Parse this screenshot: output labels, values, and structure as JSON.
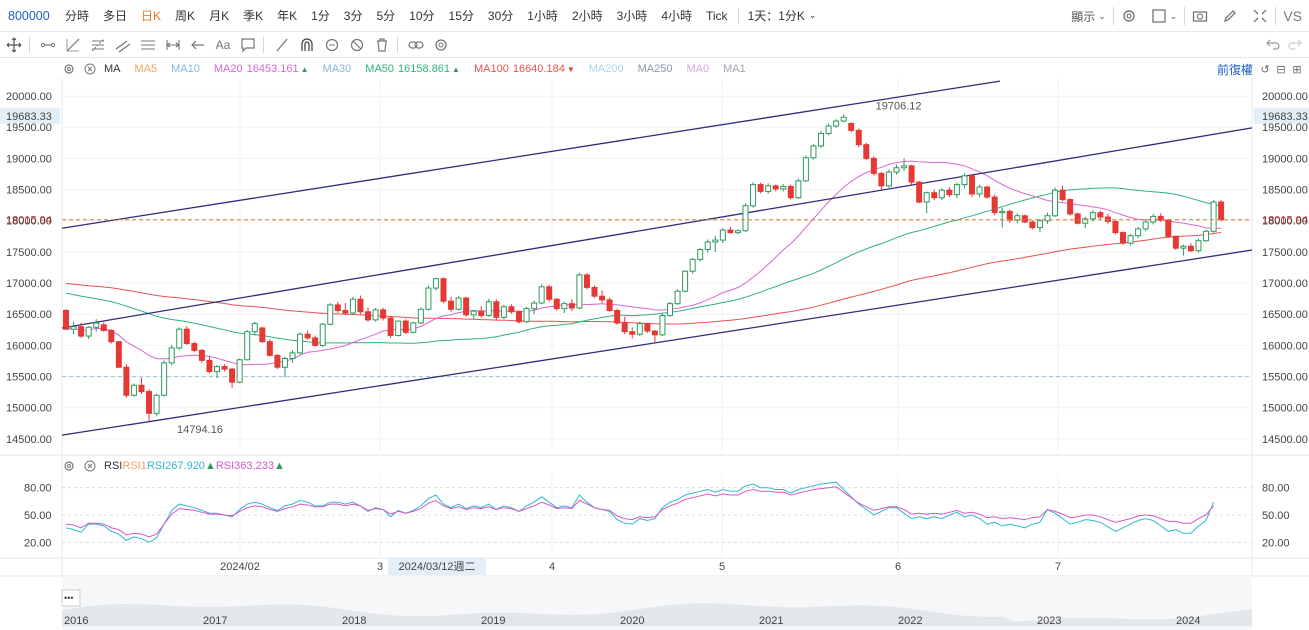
{
  "topbar": {
    "symbol": "800000",
    "timeframes": [
      "分時",
      "多日",
      "日K",
      "周K",
      "月K",
      "季K",
      "年K",
      "1分",
      "3分",
      "5分",
      "10分",
      "15分",
      "30分",
      "1小時",
      "2小時",
      "3小時",
      "4小時",
      "Tick"
    ],
    "active": "日K",
    "custom": "1天：1分K",
    "display_label": "顯示"
  },
  "legend": {
    "main_label": "MA",
    "ma5": "MA5",
    "ma10": "MA10",
    "ma20": "MA20",
    "ma20_value": "16453.161",
    "ma30": "MA30",
    "ma50": "MA50",
    "ma50_value": "16158.861",
    "ma100": "MA100",
    "ma100_value": "16640.184",
    "ma200": "MA200",
    "ma250": "MA250",
    "ma0": "MA0",
    "ma1": "MA1",
    "adjust_label": "前復權"
  },
  "rsi_legend": {
    "label": "RSI",
    "rsi1": "RSI1",
    "rsi2": "RSI2",
    "rsi2_value": "67.920",
    "rsi3": "RSI3",
    "rsi3_value": "63.233"
  },
  "colors": {
    "up": "#2e9a5e",
    "down": "#e53935",
    "ma5": "#f0a35e",
    "ma10": "#7fb8e0",
    "ma20": "#d966d0",
    "ma30": "#88b8d8",
    "ma50": "#2eb37a",
    "ma100": "#e8524f",
    "ma200": "#a8d8ec",
    "ma250": "#8a96a8",
    "ma0": "#d8a8e0",
    "ma1": "#a0a8b0",
    "channel": "#2c2c7a",
    "last_price_line": "#e8762d",
    "rsi2": "#31b8d0",
    "rsi3": "#d957c8"
  },
  "chart_data": {
    "type": "candlestick",
    "y_ticks": [
      "20000.00",
      "19500.00",
      "19000.00",
      "18500.00",
      "18000.00",
      "17500.00",
      "17000.00",
      "16500.00",
      "16000.00",
      "15500.00",
      "15000.00",
      "14500.00"
    ],
    "ylim": [
      14290,
      20290
    ],
    "current_price": "18015.94",
    "crosshair_price": "19683.33",
    "reference_line": 15500,
    "annotations": {
      "high": "19706.12",
      "low": "14794.16"
    },
    "x_labels": [
      "2024/02",
      "3",
      "4",
      "5",
      "6",
      "7"
    ],
    "crosshair_date": "2024/03/12週二",
    "candles": [
      [
        16560,
        16580,
        16250,
        16260
      ],
      [
        16260,
        16380,
        16180,
        16300
      ],
      [
        16300,
        16360,
        16120,
        16150
      ],
      [
        16150,
        16310,
        16100,
        16290
      ],
      [
        16290,
        16420,
        16220,
        16360
      ],
      [
        16330,
        16370,
        16220,
        16240
      ],
      [
        16240,
        16260,
        16030,
        16060
      ],
      [
        16060,
        16070,
        15640,
        15650
      ],
      [
        15650,
        15700,
        15160,
        15200
      ],
      [
        15200,
        15390,
        15180,
        15360
      ],
      [
        15360,
        15480,
        15220,
        15260
      ],
      [
        15260,
        15300,
        14790,
        14910
      ],
      [
        14910,
        15230,
        14860,
        15200
      ],
      [
        15200,
        15760,
        15180,
        15720
      ],
      [
        15720,
        16010,
        15680,
        15960
      ],
      [
        15960,
        16290,
        15930,
        16260
      ],
      [
        16260,
        16310,
        16010,
        16030
      ],
      [
        16030,
        16060,
        15890,
        15920
      ],
      [
        15920,
        15940,
        15720,
        15760
      ],
      [
        15760,
        15820,
        15550,
        15580
      ],
      [
        15580,
        15690,
        15480,
        15660
      ],
      [
        15660,
        15700,
        15580,
        15620
      ],
      [
        15620,
        15640,
        15320,
        15410
      ],
      [
        15410,
        15790,
        15390,
        15770
      ],
      [
        15770,
        16250,
        15760,
        16220
      ],
      [
        16220,
        16380,
        16160,
        16350
      ],
      [
        16280,
        16300,
        16040,
        16060
      ],
      [
        16060,
        16100,
        15820,
        15840
      ],
      [
        15840,
        15860,
        15620,
        15650
      ],
      [
        15650,
        15820,
        15490,
        15790
      ],
      [
        15790,
        15920,
        15720,
        15880
      ],
      [
        15880,
        16210,
        15860,
        16180
      ],
      [
        16180,
        16240,
        16090,
        16120
      ],
      [
        16120,
        16160,
        15980,
        16000
      ],
      [
        16000,
        16360,
        15980,
        16340
      ],
      [
        16340,
        16680,
        16320,
        16650
      ],
      [
        16650,
        16700,
        16520,
        16560
      ],
      [
        16560,
        16680,
        16490,
        16520
      ],
      [
        16520,
        16780,
        16500,
        16740
      ],
      [
        16740,
        16800,
        16500,
        16540
      ],
      [
        16540,
        16610,
        16380,
        16410
      ],
      [
        16410,
        16600,
        16380,
        16570
      ],
      [
        16570,
        16600,
        16400,
        16440
      ],
      [
        16440,
        16470,
        16120,
        16160
      ],
      [
        16160,
        16400,
        16140,
        16390
      ],
      [
        16390,
        16420,
        16180,
        16210
      ],
      [
        16210,
        16380,
        16190,
        16360
      ],
      [
        16360,
        16610,
        16340,
        16580
      ],
      [
        16580,
        16960,
        16560,
        16920
      ],
      [
        16920,
        17090,
        16880,
        17070
      ],
      [
        17070,
        17090,
        16680,
        16710
      ],
      [
        16710,
        16780,
        16540,
        16580
      ],
      [
        16580,
        16790,
        16560,
        16760
      ],
      [
        16760,
        16780,
        16460,
        16490
      ],
      [
        16490,
        16570,
        16420,
        16550
      ],
      [
        16550,
        16630,
        16440,
        16480
      ],
      [
        16480,
        16750,
        16460,
        16700
      ],
      [
        16700,
        16740,
        16400,
        16450
      ],
      [
        16450,
        16650,
        16420,
        16620
      ],
      [
        16620,
        16660,
        16510,
        16540
      ],
      [
        16540,
        16560,
        16350,
        16380
      ],
      [
        16380,
        16620,
        16360,
        16590
      ],
      [
        16590,
        16720,
        16500,
        16680
      ],
      [
        16680,
        16980,
        16660,
        16940
      ],
      [
        16940,
        16970,
        16700,
        16740
      ],
      [
        16740,
        16760,
        16560,
        16590
      ],
      [
        16590,
        16700,
        16520,
        16670
      ],
      [
        16670,
        16740,
        16550,
        16600
      ],
      [
        16600,
        17170,
        16580,
        17130
      ],
      [
        17130,
        17160,
        16900,
        16930
      ],
      [
        16930,
        16960,
        16760,
        16790
      ],
      [
        16790,
        16880,
        16680,
        16730
      ],
      [
        16730,
        16770,
        16540,
        16560
      ],
      [
        16560,
        16590,
        16330,
        16360
      ],
      [
        16360,
        16460,
        16180,
        16220
      ],
      [
        16220,
        16290,
        16110,
        16180
      ],
      [
        16180,
        16380,
        16150,
        16350
      ],
      [
        16350,
        16360,
        16200,
        16230
      ],
      [
        16230,
        16250,
        16050,
        16170
      ],
      [
        16170,
        16510,
        16150,
        16480
      ],
      [
        16480,
        16700,
        16460,
        16670
      ],
      [
        16670,
        16900,
        16650,
        16870
      ],
      [
        16870,
        17210,
        16850,
        17190
      ],
      [
        17190,
        17400,
        17150,
        17380
      ],
      [
        17380,
        17560,
        17350,
        17540
      ],
      [
        17540,
        17700,
        17490,
        17660
      ],
      [
        17660,
        17760,
        17500,
        17690
      ],
      [
        17690,
        17880,
        17640,
        17850
      ],
      [
        17850,
        17900,
        17790,
        17810
      ],
      [
        17810,
        17860,
        17780,
        17840
      ],
      [
        17840,
        18280,
        17820,
        18240
      ],
      [
        18240,
        18620,
        18210,
        18580
      ],
      [
        18580,
        18610,
        18440,
        18470
      ],
      [
        18470,
        18600,
        18430,
        18560
      ],
      [
        18560,
        18580,
        18470,
        18510
      ],
      [
        18510,
        18590,
        18470,
        18550
      ],
      [
        18550,
        18580,
        18340,
        18370
      ],
      [
        18370,
        18680,
        18350,
        18640
      ],
      [
        18640,
        19050,
        18620,
        19010
      ],
      [
        19010,
        19230,
        18980,
        19200
      ],
      [
        19200,
        19440,
        19170,
        19400
      ],
      [
        19400,
        19560,
        19370,
        19520
      ],
      [
        19520,
        19630,
        19490,
        19600
      ],
      [
        19600,
        19706,
        19580,
        19660
      ],
      [
        19560,
        19580,
        19420,
        19450
      ],
      [
        19450,
        19480,
        19180,
        19220
      ],
      [
        19220,
        19250,
        18970,
        19000
      ],
      [
        19000,
        19040,
        18720,
        18760
      ],
      [
        18760,
        18780,
        18500,
        18560
      ],
      [
        18560,
        18820,
        18530,
        18780
      ],
      [
        18780,
        18900,
        18740,
        18850
      ],
      [
        18850,
        19000,
        18800,
        18880
      ],
      [
        18880,
        18900,
        18580,
        18620
      ],
      [
        18620,
        18640,
        18280,
        18300
      ],
      [
        18300,
        18470,
        18120,
        18450
      ],
      [
        18450,
        18500,
        18330,
        18370
      ],
      [
        18370,
        18520,
        18330,
        18490
      ],
      [
        18490,
        18540,
        18380,
        18420
      ],
      [
        18420,
        18610,
        18360,
        18580
      ],
      [
        18580,
        18760,
        18520,
        18720
      ],
      [
        18720,
        18740,
        18380,
        18430
      ],
      [
        18430,
        18580,
        18380,
        18540
      ],
      [
        18540,
        18560,
        18350,
        18380
      ],
      [
        18380,
        18420,
        18090,
        18130
      ],
      [
        18130,
        18210,
        17890,
        18150
      ],
      [
        18150,
        18180,
        17960,
        18010
      ],
      [
        18010,
        18120,
        17960,
        18080
      ],
      [
        18080,
        18100,
        17960,
        17980
      ],
      [
        17980,
        18010,
        17860,
        17890
      ],
      [
        17890,
        18030,
        17820,
        18000
      ],
      [
        18000,
        18130,
        17950,
        18080
      ],
      [
        18080,
        18530,
        18060,
        18490
      ],
      [
        18490,
        18560,
        18310,
        18340
      ],
      [
        18340,
        18360,
        18080,
        18110
      ],
      [
        18110,
        18130,
        17940,
        17960
      ],
      [
        17960,
        18060,
        17880,
        18030
      ],
      [
        18030,
        18170,
        17990,
        18130
      ],
      [
        18130,
        18160,
        18020,
        18060
      ],
      [
        18060,
        18110,
        17950,
        17990
      ],
      [
        17990,
        18000,
        17780,
        17810
      ],
      [
        17810,
        17830,
        17610,
        17640
      ],
      [
        17640,
        17790,
        17600,
        17760
      ],
      [
        17760,
        17900,
        17720,
        17870
      ],
      [
        17870,
        18010,
        17830,
        17980
      ],
      [
        17980,
        18110,
        17940,
        18070
      ],
      [
        18070,
        18120,
        17980,
        18010
      ],
      [
        18010,
        18030,
        17720,
        17750
      ],
      [
        17750,
        17760,
        17530,
        17560
      ],
      [
        17560,
        17620,
        17440,
        17590
      ],
      [
        17590,
        17640,
        17500,
        17520
      ],
      [
        17520,
        17710,
        17490,
        17680
      ],
      [
        17680,
        17860,
        17660,
        17830
      ],
      [
        17830,
        18330,
        17810,
        18300
      ],
      [
        18300,
        18330,
        17990,
        18016
      ]
    ],
    "rsi": {
      "grid": [
        "80.00",
        "50.00",
        "20.00"
      ],
      "ylim": [
        5,
        95
      ],
      "rsi2": [
        36,
        34,
        31,
        40,
        40,
        38,
        32,
        29,
        22,
        26,
        24,
        20,
        25,
        40,
        55,
        62,
        60,
        58,
        55,
        52,
        52,
        50,
        48,
        56,
        62,
        64,
        62,
        58,
        55,
        60,
        62,
        66,
        64,
        60,
        60,
        64,
        64,
        62,
        64,
        60,
        54,
        58,
        56,
        48,
        55,
        52,
        55,
        60,
        68,
        72,
        62,
        58,
        62,
        57,
        60,
        58,
        62,
        56,
        60,
        58,
        54,
        60,
        64,
        70,
        64,
        58,
        60,
        58,
        72,
        64,
        58,
        56,
        54,
        45,
        41,
        40,
        46,
        44,
        46,
        58,
        64,
        67,
        72,
        74,
        76,
        78,
        75,
        78,
        76,
        76,
        82,
        84,
        80,
        80,
        78,
        78,
        74,
        78,
        80,
        82,
        84,
        85,
        86,
        78,
        70,
        62,
        56,
        50,
        54,
        58,
        58,
        52,
        46,
        48,
        46,
        48,
        46,
        50,
        53,
        48,
        50,
        46,
        40,
        42,
        38,
        40,
        38,
        36,
        40,
        42,
        56,
        52,
        46,
        40,
        42,
        45,
        44,
        42,
        37,
        32,
        36,
        40,
        44,
        46,
        44,
        38,
        32,
        34,
        30,
        30,
        38,
        44,
        64
      ],
      "rsi3": [
        40,
        39,
        36,
        41,
        41,
        40,
        36,
        34,
        28,
        30,
        29,
        26,
        29,
        40,
        51,
        57,
        56,
        55,
        53,
        51,
        51,
        50,
        49,
        54,
        58,
        60,
        59,
        56,
        54,
        57,
        59,
        62,
        61,
        59,
        59,
        62,
        62,
        60,
        62,
        60,
        55,
        57,
        56,
        51,
        54,
        52,
        54,
        57,
        63,
        66,
        60,
        57,
        59,
        56,
        58,
        57,
        59,
        56,
        58,
        57,
        54,
        57,
        60,
        64,
        61,
        57,
        58,
        57,
        66,
        62,
        58,
        56,
        55,
        49,
        46,
        45,
        48,
        47,
        48,
        56,
        60,
        63,
        67,
        69,
        71,
        73,
        71,
        73,
        72,
        72,
        76,
        78,
        76,
        76,
        75,
        75,
        72,
        74,
        76,
        78,
        79,
        80,
        81,
        75,
        69,
        63,
        59,
        55,
        57,
        59,
        59,
        56,
        51,
        52,
        51,
        52,
        51,
        53,
        55,
        52,
        53,
        51,
        47,
        48,
        46,
        47,
        46,
        45,
        47,
        48,
        56,
        54,
        51,
        47,
        48,
        50,
        50,
        48,
        45,
        42,
        44,
        46,
        49,
        50,
        49,
        46,
        43,
        43,
        41,
        41,
        46,
        50,
        60
      ]
    },
    "overview_years": [
      "2016",
      "2017",
      "2018",
      "2019",
      "2020",
      "2021",
      "2022",
      "2023",
      "2024"
    ]
  }
}
